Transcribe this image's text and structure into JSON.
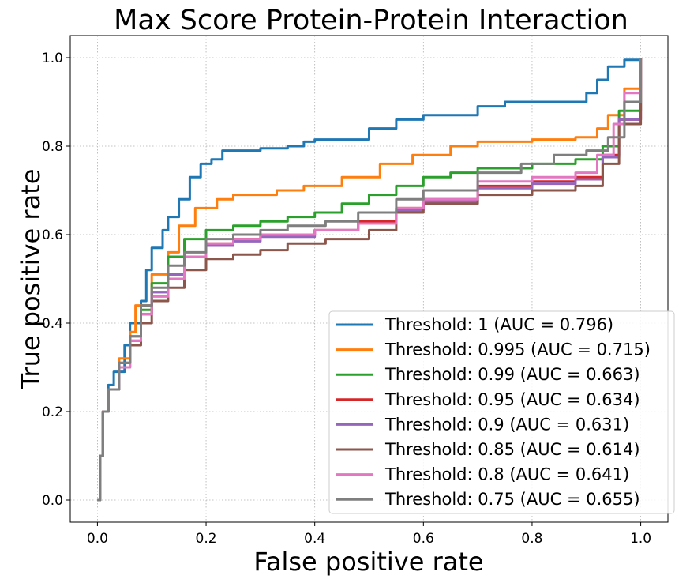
{
  "chart_data": {
    "type": "line",
    "title": "Max Score Protein-Protein Interaction",
    "xlabel": "False positive rate",
    "ylabel": "True positive rate",
    "xlim": [
      -0.05,
      1.05
    ],
    "ylim": [
      -0.05,
      1.05
    ],
    "xticks": [
      "0.0",
      "0.2",
      "0.4",
      "0.6",
      "0.8",
      "1.0"
    ],
    "yticks": [
      "0.0",
      "0.2",
      "0.4",
      "0.6",
      "0.8",
      "1.0"
    ],
    "grid": true,
    "legend_position": "lower-right",
    "series": [
      {
        "name": "Threshold: 1 (AUC = 0.796)",
        "color": "#1f77b4",
        "points": [
          [
            0,
            0
          ],
          [
            0.005,
            0.1
          ],
          [
            0.01,
            0.2
          ],
          [
            0.02,
            0.26
          ],
          [
            0.03,
            0.29
          ],
          [
            0.05,
            0.35
          ],
          [
            0.06,
            0.4
          ],
          [
            0.08,
            0.45
          ],
          [
            0.09,
            0.52
          ],
          [
            0.1,
            0.57
          ],
          [
            0.12,
            0.61
          ],
          [
            0.13,
            0.64
          ],
          [
            0.15,
            0.68
          ],
          [
            0.17,
            0.73
          ],
          [
            0.19,
            0.76
          ],
          [
            0.21,
            0.77
          ],
          [
            0.23,
            0.79
          ],
          [
            0.3,
            0.795
          ],
          [
            0.35,
            0.8
          ],
          [
            0.38,
            0.81
          ],
          [
            0.4,
            0.815
          ],
          [
            0.5,
            0.84
          ],
          [
            0.55,
            0.86
          ],
          [
            0.6,
            0.87
          ],
          [
            0.7,
            0.89
          ],
          [
            0.75,
            0.9
          ],
          [
            0.8,
            0.9
          ],
          [
            0.88,
            0.9
          ],
          [
            0.9,
            0.92
          ],
          [
            0.92,
            0.95
          ],
          [
            0.94,
            0.98
          ],
          [
            0.97,
            0.995
          ],
          [
            1,
            1
          ]
        ]
      },
      {
        "name": "Threshold: 0.995 (AUC = 0.715)",
        "color": "#ff7f0e",
        "points": [
          [
            0,
            0
          ],
          [
            0.005,
            0.1
          ],
          [
            0.01,
            0.2
          ],
          [
            0.02,
            0.25
          ],
          [
            0.04,
            0.32
          ],
          [
            0.06,
            0.38
          ],
          [
            0.07,
            0.44
          ],
          [
            0.1,
            0.51
          ],
          [
            0.13,
            0.56
          ],
          [
            0.15,
            0.62
          ],
          [
            0.18,
            0.66
          ],
          [
            0.22,
            0.68
          ],
          [
            0.25,
            0.69
          ],
          [
            0.33,
            0.7
          ],
          [
            0.38,
            0.71
          ],
          [
            0.45,
            0.73
          ],
          [
            0.52,
            0.76
          ],
          [
            0.58,
            0.78
          ],
          [
            0.65,
            0.8
          ],
          [
            0.7,
            0.81
          ],
          [
            0.8,
            0.815
          ],
          [
            0.88,
            0.82
          ],
          [
            0.92,
            0.84
          ],
          [
            0.94,
            0.87
          ],
          [
            0.97,
            0.93
          ],
          [
            1,
            1
          ]
        ]
      },
      {
        "name": "Threshold: 0.99 (AUC = 0.663)",
        "color": "#2ca02c",
        "points": [
          [
            0,
            0
          ],
          [
            0.005,
            0.1
          ],
          [
            0.01,
            0.2
          ],
          [
            0.02,
            0.25
          ],
          [
            0.04,
            0.31
          ],
          [
            0.06,
            0.37
          ],
          [
            0.08,
            0.43
          ],
          [
            0.1,
            0.49
          ],
          [
            0.13,
            0.55
          ],
          [
            0.16,
            0.59
          ],
          [
            0.2,
            0.61
          ],
          [
            0.25,
            0.62
          ],
          [
            0.3,
            0.63
          ],
          [
            0.35,
            0.64
          ],
          [
            0.4,
            0.65
          ],
          [
            0.45,
            0.67
          ],
          [
            0.5,
            0.69
          ],
          [
            0.55,
            0.71
          ],
          [
            0.6,
            0.73
          ],
          [
            0.65,
            0.74
          ],
          [
            0.7,
            0.75
          ],
          [
            0.8,
            0.76
          ],
          [
            0.88,
            0.77
          ],
          [
            0.93,
            0.8
          ],
          [
            0.96,
            0.88
          ],
          [
            1,
            1
          ]
        ]
      },
      {
        "name": "Threshold: 0.95 (AUC = 0.634)",
        "color": "#d62728",
        "points": [
          [
            0,
            0
          ],
          [
            0.005,
            0.1
          ],
          [
            0.01,
            0.2
          ],
          [
            0.02,
            0.25
          ],
          [
            0.04,
            0.31
          ],
          [
            0.06,
            0.36
          ],
          [
            0.08,
            0.42
          ],
          [
            0.1,
            0.47
          ],
          [
            0.13,
            0.51
          ],
          [
            0.16,
            0.55
          ],
          [
            0.2,
            0.58
          ],
          [
            0.25,
            0.59
          ],
          [
            0.3,
            0.6
          ],
          [
            0.4,
            0.61
          ],
          [
            0.48,
            0.63
          ],
          [
            0.55,
            0.66
          ],
          [
            0.6,
            0.68
          ],
          [
            0.7,
            0.71
          ],
          [
            0.8,
            0.72
          ],
          [
            0.88,
            0.73
          ],
          [
            0.93,
            0.78
          ],
          [
            0.96,
            0.86
          ],
          [
            1,
            1
          ]
        ]
      },
      {
        "name": "Threshold: 0.9 (AUC = 0.631)",
        "color": "#9467bd",
        "points": [
          [
            0,
            0
          ],
          [
            0.005,
            0.1
          ],
          [
            0.01,
            0.2
          ],
          [
            0.02,
            0.25
          ],
          [
            0.04,
            0.31
          ],
          [
            0.06,
            0.36
          ],
          [
            0.08,
            0.42
          ],
          [
            0.1,
            0.47
          ],
          [
            0.13,
            0.51
          ],
          [
            0.16,
            0.55
          ],
          [
            0.2,
            0.575
          ],
          [
            0.25,
            0.585
          ],
          [
            0.3,
            0.595
          ],
          [
            0.4,
            0.61
          ],
          [
            0.48,
            0.625
          ],
          [
            0.55,
            0.655
          ],
          [
            0.6,
            0.675
          ],
          [
            0.7,
            0.705
          ],
          [
            0.8,
            0.715
          ],
          [
            0.88,
            0.725
          ],
          [
            0.93,
            0.775
          ],
          [
            0.96,
            0.86
          ],
          [
            1,
            1
          ]
        ]
      },
      {
        "name": "Threshold: 0.85 (AUC = 0.614)",
        "color": "#8c564b",
        "points": [
          [
            0,
            0
          ],
          [
            0.005,
            0.1
          ],
          [
            0.01,
            0.2
          ],
          [
            0.02,
            0.25
          ],
          [
            0.04,
            0.3
          ],
          [
            0.06,
            0.35
          ],
          [
            0.08,
            0.4
          ],
          [
            0.1,
            0.45
          ],
          [
            0.13,
            0.48
          ],
          [
            0.16,
            0.52
          ],
          [
            0.2,
            0.545
          ],
          [
            0.25,
            0.555
          ],
          [
            0.3,
            0.565
          ],
          [
            0.35,
            0.58
          ],
          [
            0.42,
            0.59
          ],
          [
            0.5,
            0.61
          ],
          [
            0.55,
            0.65
          ],
          [
            0.6,
            0.67
          ],
          [
            0.7,
            0.69
          ],
          [
            0.8,
            0.7
          ],
          [
            0.88,
            0.71
          ],
          [
            0.93,
            0.76
          ],
          [
            0.96,
            0.85
          ],
          [
            1,
            1
          ]
        ]
      },
      {
        "name": "Threshold: 0.8 (AUC = 0.641)",
        "color": "#e377c2",
        "points": [
          [
            0,
            0
          ],
          [
            0.005,
            0.1
          ],
          [
            0.01,
            0.2
          ],
          [
            0.02,
            0.25
          ],
          [
            0.04,
            0.3
          ],
          [
            0.06,
            0.36
          ],
          [
            0.08,
            0.42
          ],
          [
            0.1,
            0.46
          ],
          [
            0.13,
            0.5
          ],
          [
            0.16,
            0.55
          ],
          [
            0.2,
            0.58
          ],
          [
            0.25,
            0.59
          ],
          [
            0.3,
            0.6
          ],
          [
            0.4,
            0.61
          ],
          [
            0.48,
            0.625
          ],
          [
            0.55,
            0.66
          ],
          [
            0.6,
            0.68
          ],
          [
            0.7,
            0.72
          ],
          [
            0.8,
            0.73
          ],
          [
            0.88,
            0.74
          ],
          [
            0.92,
            0.78
          ],
          [
            0.95,
            0.85
          ],
          [
            0.97,
            0.92
          ],
          [
            1,
            1
          ]
        ]
      },
      {
        "name": "Threshold: 0.75 (AUC = 0.655)",
        "color": "#7f7f7f",
        "points": [
          [
            0,
            0
          ],
          [
            0.005,
            0.1
          ],
          [
            0.01,
            0.2
          ],
          [
            0.02,
            0.25
          ],
          [
            0.04,
            0.31
          ],
          [
            0.06,
            0.37
          ],
          [
            0.08,
            0.44
          ],
          [
            0.1,
            0.48
          ],
          [
            0.13,
            0.53
          ],
          [
            0.16,
            0.56
          ],
          [
            0.2,
            0.59
          ],
          [
            0.25,
            0.6
          ],
          [
            0.3,
            0.61
          ],
          [
            0.35,
            0.62
          ],
          [
            0.42,
            0.63
          ],
          [
            0.48,
            0.65
          ],
          [
            0.55,
            0.68
          ],
          [
            0.6,
            0.7
          ],
          [
            0.7,
            0.74
          ],
          [
            0.78,
            0.76
          ],
          [
            0.84,
            0.78
          ],
          [
            0.9,
            0.79
          ],
          [
            0.94,
            0.82
          ],
          [
            0.97,
            0.9
          ],
          [
            1,
            1
          ]
        ]
      }
    ]
  }
}
